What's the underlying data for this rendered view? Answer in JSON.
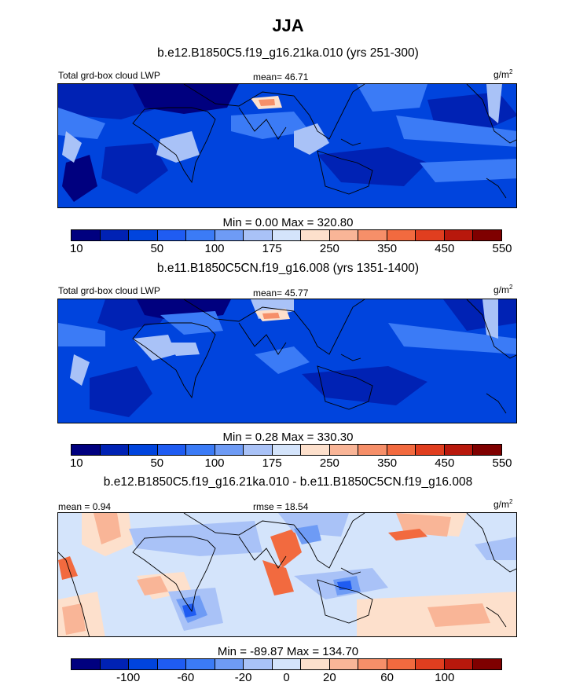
{
  "title": "JJA",
  "units_base": "g/m",
  "units_exp": "2",
  "panels": [
    {
      "case": "b.e12.B1850C5.f19_g16.21ka.010 (yrs 251-300)",
      "left_label": "Total grd-box cloud LWP",
      "center_label": "mean=  46.71",
      "minmax": "Min =   0.00 Max = 320.80",
      "colorbar_labels": [
        "10",
        "50",
        "100",
        "175",
        "250",
        "350",
        "450",
        "550"
      ]
    },
    {
      "case": "b.e11.B1850C5CN.f19_g16.008 (yrs 1351-1400)",
      "left_label": "Total grd-box cloud LWP",
      "center_label": "mean=  45.77",
      "minmax": "Min =   0.28 Max = 330.30",
      "colorbar_labels": [
        "10",
        "50",
        "100",
        "175",
        "250",
        "350",
        "450",
        "550"
      ]
    },
    {
      "case": "b.e12.B1850C5.f19_g16.21ka.010 - b.e11.B1850C5CN.f19_g16.008",
      "left_label": "mean =   0.94",
      "center_label": "rmse =  18.54",
      "minmax": "Min = -89.87 Max = 134.70",
      "colorbar_labels": [
        "-100",
        "-60",
        "-20",
        "0",
        "20",
        "60",
        "100"
      ]
    }
  ],
  "colors": {
    "abs_scale": [
      "#00007f",
      "#0022b4",
      "#0044dd",
      "#1f5cf2",
      "#3b7bf6",
      "#6e9bf5",
      "#a9c2f7",
      "#d4e4fb",
      "#fde0cc",
      "#f9b597",
      "#f68f69",
      "#f26a3f",
      "#e03e1f",
      "#b8180c",
      "#7f0000"
    ],
    "diff_scale": [
      "#00007f",
      "#0022b4",
      "#0044dd",
      "#1f5cf2",
      "#3b7bf6",
      "#6e9bf5",
      "#a9c2f7",
      "#d4e4fb",
      "#fde0cc",
      "#f9b597",
      "#f68f69",
      "#f26a3f",
      "#e03e1f",
      "#b8180c",
      "#7f0000"
    ]
  },
  "chart_data": [
    {
      "type": "heatmap",
      "title": "b.e12.B1850C5.f19_g16.21ka.010 (yrs 251-300)",
      "variable": "Total grd-box cloud LWP",
      "units": "g/m2",
      "mean": 46.71,
      "min": 0.0,
      "max": 320.8,
      "levels": [
        10,
        25,
        50,
        75,
        100,
        125,
        175,
        200,
        250,
        300,
        350,
        400,
        450,
        500,
        550
      ]
    },
    {
      "type": "heatmap",
      "title": "b.e11.B1850C5CN.f19_g16.008 (yrs 1351-1400)",
      "variable": "Total grd-box cloud LWP",
      "units": "g/m2",
      "mean": 45.77,
      "min": 0.28,
      "max": 330.3,
      "levels": [
        10,
        25,
        50,
        75,
        100,
        125,
        175,
        200,
        250,
        300,
        350,
        400,
        450,
        500,
        550
      ]
    },
    {
      "type": "heatmap",
      "title": "b.e12.B1850C5.f19_g16.21ka.010 - b.e11.B1850C5CN.f19_g16.008",
      "variable": "difference",
      "units": "g/m2",
      "mean": 0.94,
      "rmse": 18.54,
      "min": -89.87,
      "max": 134.7,
      "levels": [
        -120,
        -100,
        -80,
        -60,
        -40,
        -20,
        -10,
        0,
        10,
        20,
        40,
        60,
        80,
        100,
        120
      ]
    }
  ]
}
